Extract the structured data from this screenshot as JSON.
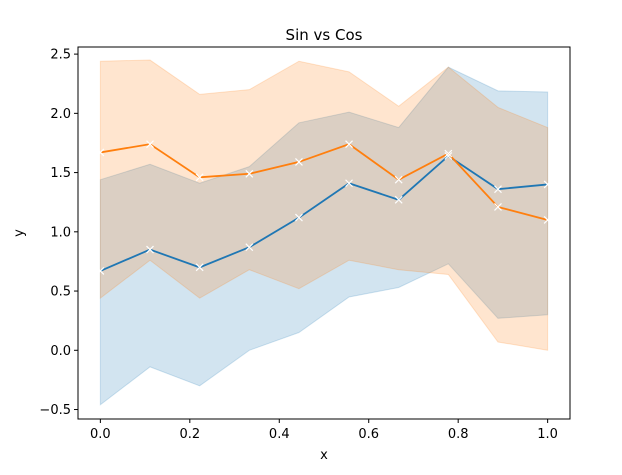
{
  "chart_data": {
    "type": "line",
    "title": "Sin vs Cos",
    "xlabel": "x",
    "ylabel": "y",
    "xlim": [
      -0.05,
      1.05
    ],
    "ylim": [
      -0.58,
      2.56
    ],
    "xticks": [
      0.0,
      0.2,
      0.4,
      0.6,
      0.8,
      1.0
    ],
    "xtick_labels": [
      "0.0",
      "0.2",
      "0.4",
      "0.6",
      "0.8",
      "1.0"
    ],
    "yticks": [
      -0.5,
      0.0,
      0.5,
      1.0,
      1.5,
      2.0,
      2.5
    ],
    "ytick_labels": [
      "−0.5",
      "0.0",
      "0.5",
      "1.0",
      "1.5",
      "2.0",
      "2.5"
    ],
    "grid": false,
    "legend": null,
    "marker": "x",
    "x": [
      0.0,
      0.111,
      0.222,
      0.333,
      0.444,
      0.556,
      0.667,
      0.778,
      0.889,
      1.0
    ],
    "series": [
      {
        "color": "#1f77b4",
        "values": [
          0.67,
          0.85,
          0.7,
          0.87,
          1.12,
          1.41,
          1.27,
          1.64,
          1.36,
          1.4
        ],
        "band_upper": [
          1.44,
          1.57,
          1.41,
          1.55,
          1.92,
          2.01,
          1.88,
          2.39,
          2.19,
          2.18
        ],
        "band_lower": [
          -0.46,
          -0.14,
          -0.3,
          0.0,
          0.15,
          0.45,
          0.53,
          0.73,
          0.27,
          0.3
        ]
      },
      {
        "color": "#ff7f0e",
        "values": [
          1.67,
          1.74,
          1.46,
          1.49,
          1.59,
          1.74,
          1.44,
          1.66,
          1.21,
          1.1
        ],
        "band_upper": [
          2.44,
          2.45,
          2.16,
          2.2,
          2.44,
          2.35,
          2.06,
          2.39,
          2.05,
          1.88
        ],
        "band_lower": [
          0.44,
          0.76,
          0.44,
          0.68,
          0.52,
          0.76,
          0.68,
          0.64,
          0.07,
          0.0
        ]
      }
    ]
  }
}
